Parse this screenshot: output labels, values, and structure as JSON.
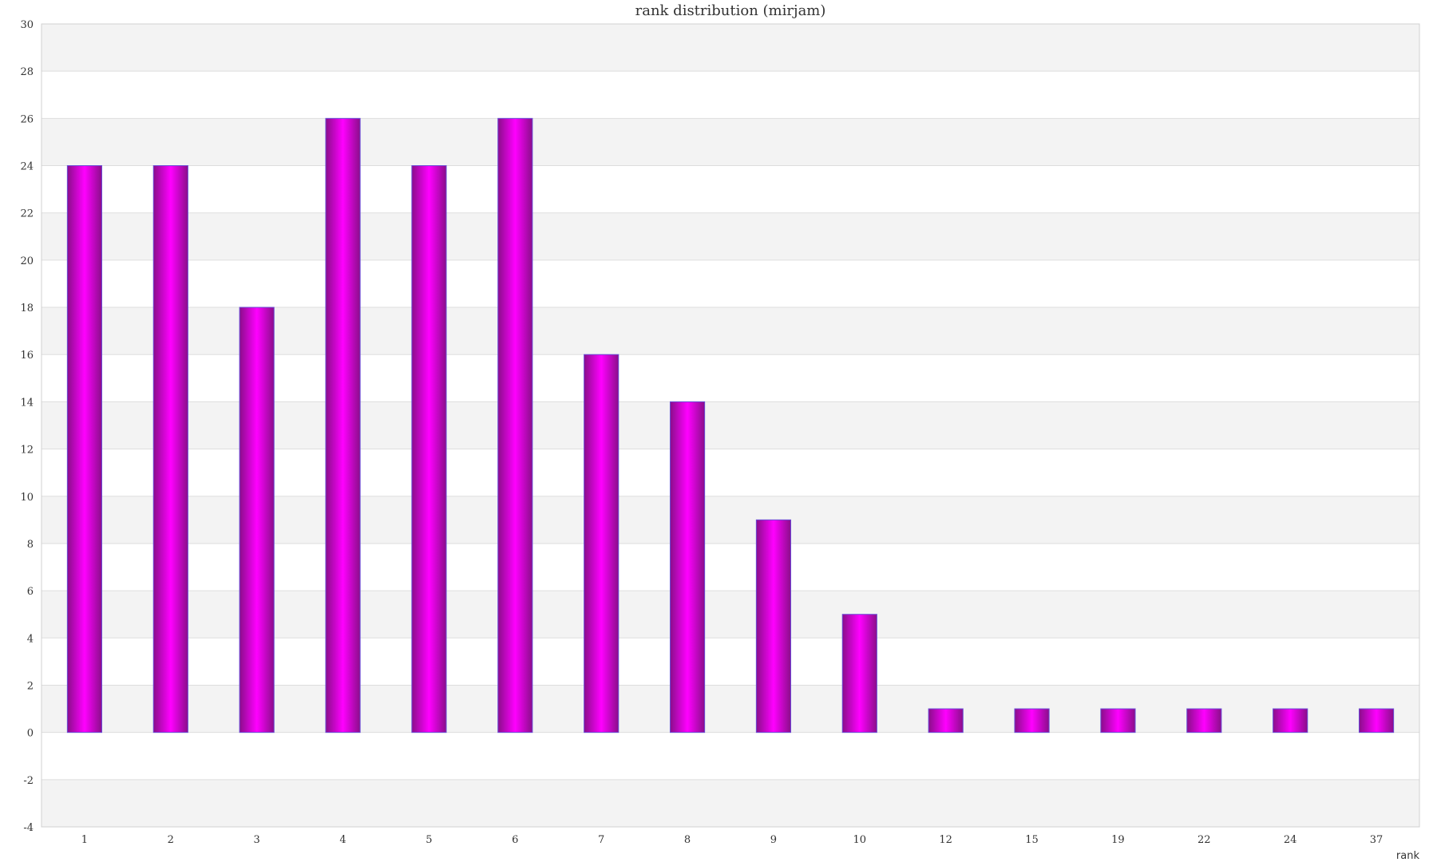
{
  "colors": {
    "bar_edge": "#8a0e8a",
    "bar_center": "#ff00ff",
    "bar_outline": "#6a4bd6",
    "band_fill": "#f3f3f3",
    "grid_line": "#dddddd",
    "frame_line": "#d0d0d0"
  },
  "chart_data": {
    "type": "bar",
    "title": "rank distribution (mirjam)",
    "xlabel": "rank",
    "ylabel": "",
    "categories": [
      "1",
      "2",
      "3",
      "4",
      "5",
      "6",
      "7",
      "8",
      "9",
      "10",
      "12",
      "15",
      "19",
      "22",
      "24",
      "37"
    ],
    "values": [
      24,
      24,
      18,
      26,
      24,
      26,
      16,
      14,
      9,
      5,
      1,
      1,
      1,
      1,
      1,
      1
    ],
    "ylim": [
      -4,
      30
    ],
    "yticks": [
      "-4",
      "-2",
      "0",
      "2",
      "4",
      "6",
      "8",
      "10",
      "12",
      "14",
      "16",
      "18",
      "20",
      "22",
      "24",
      "26",
      "28",
      "30"
    ],
    "grid": true,
    "legend": "none"
  }
}
